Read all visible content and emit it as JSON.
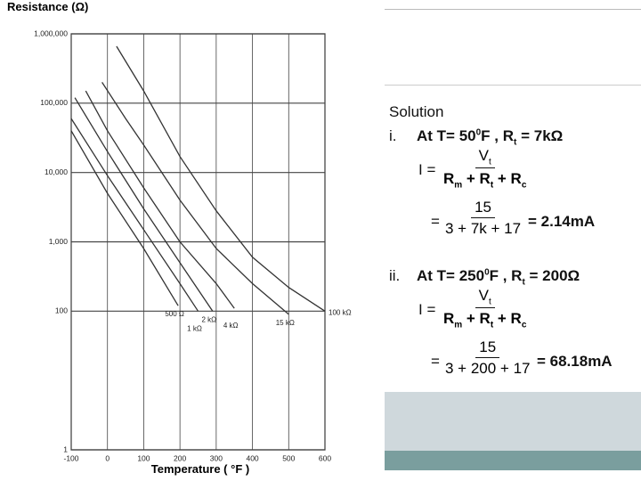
{
  "chart_data": {
    "type": "line",
    "y_title": "Resistance (Ω)",
    "x_title": "Temperature ( °F )",
    "xlim": [
      -100,
      600
    ],
    "xticks": [
      -100,
      0,
      100,
      200,
      300,
      400,
      500,
      600
    ],
    "ylim": [
      1,
      1000000
    ],
    "log_y": true,
    "grid": true,
    "yticks": [
      1,
      100,
      {
        "value": 1000,
        "label": "1,000"
      },
      {
        "value": 10000,
        "label": "10,000"
      },
      {
        "value": 100000,
        "label": "100,000"
      },
      {
        "value": 1000000,
        "label": "1,000,000"
      }
    ],
    "series": [
      {
        "name": "500 Ω",
        "color": "#333",
        "x": [
          -100,
          0,
          100,
          195
        ],
        "values": [
          40000,
          5000,
          800,
          120
        ]
      },
      {
        "name": "1 kΩ",
        "color": "#333",
        "x": [
          -100,
          0,
          100,
          200,
          250
        ],
        "values": [
          60000,
          9000,
          1500,
          250,
          100
        ]
      },
      {
        "name": "2 kΩ",
        "color": "#333",
        "x": [
          -90,
          0,
          100,
          200,
          290
        ],
        "values": [
          120000,
          20000,
          3000,
          500,
          100
        ]
      },
      {
        "name": "4 kΩ",
        "color": "#333",
        "x": [
          -60,
          0,
          100,
          200,
          300,
          350
        ],
        "values": [
          150000,
          40000,
          6000,
          1000,
          250,
          110
        ]
      },
      {
        "name": "15 kΩ",
        "color": "#333",
        "x": [
          -15,
          50,
          100,
          200,
          300,
          400,
          500
        ],
        "values": [
          200000,
          60000,
          25000,
          4000,
          800,
          250,
          90
        ]
      },
      {
        "name": "100 kΩ",
        "color": "#333",
        "x": [
          25,
          100,
          200,
          300,
          400,
          500,
          600
        ],
        "values": [
          660000,
          150000,
          17000,
          2800,
          600,
          220,
          100
        ]
      }
    ]
  },
  "solution": {
    "heading": "Solution",
    "parts": [
      {
        "label": "i.",
        "condition": [
          {
            "text": "At T= 50",
            "sup": "0"
          },
          {
            "text": "F ,  R",
            "sub": "t"
          },
          {
            "text": " = 7kΩ"
          }
        ],
        "lhs": "I =",
        "num": [
          {
            "text": "V",
            "sub": "t"
          }
        ],
        "den": [
          {
            "text": "R",
            "sub": "m"
          },
          {
            "text": " + R",
            "sub": "t"
          },
          {
            "text": " + R",
            "sub": "c"
          }
        ],
        "eq": "=",
        "num2": "15",
        "den2": "3 + 7k + 17",
        "result": "= 2.14mA"
      },
      {
        "label": "ii.",
        "condition": [
          {
            "text": "At T= 250",
            "sup": "0"
          },
          {
            "text": "F ,  R",
            "sub": "t"
          },
          {
            "text": " = 200Ω"
          }
        ],
        "lhs": "I =",
        "num": [
          {
            "text": "V",
            "sub": "t"
          }
        ],
        "den": [
          {
            "text": "R",
            "sub": "m"
          },
          {
            "text": " + R",
            "sub": "t"
          },
          {
            "text": " + R",
            "sub": "c"
          }
        ],
        "eq": "=",
        "num2": "15",
        "den2": "3 + 200 + 17",
        "result": "= 68.18mA"
      }
    ]
  }
}
